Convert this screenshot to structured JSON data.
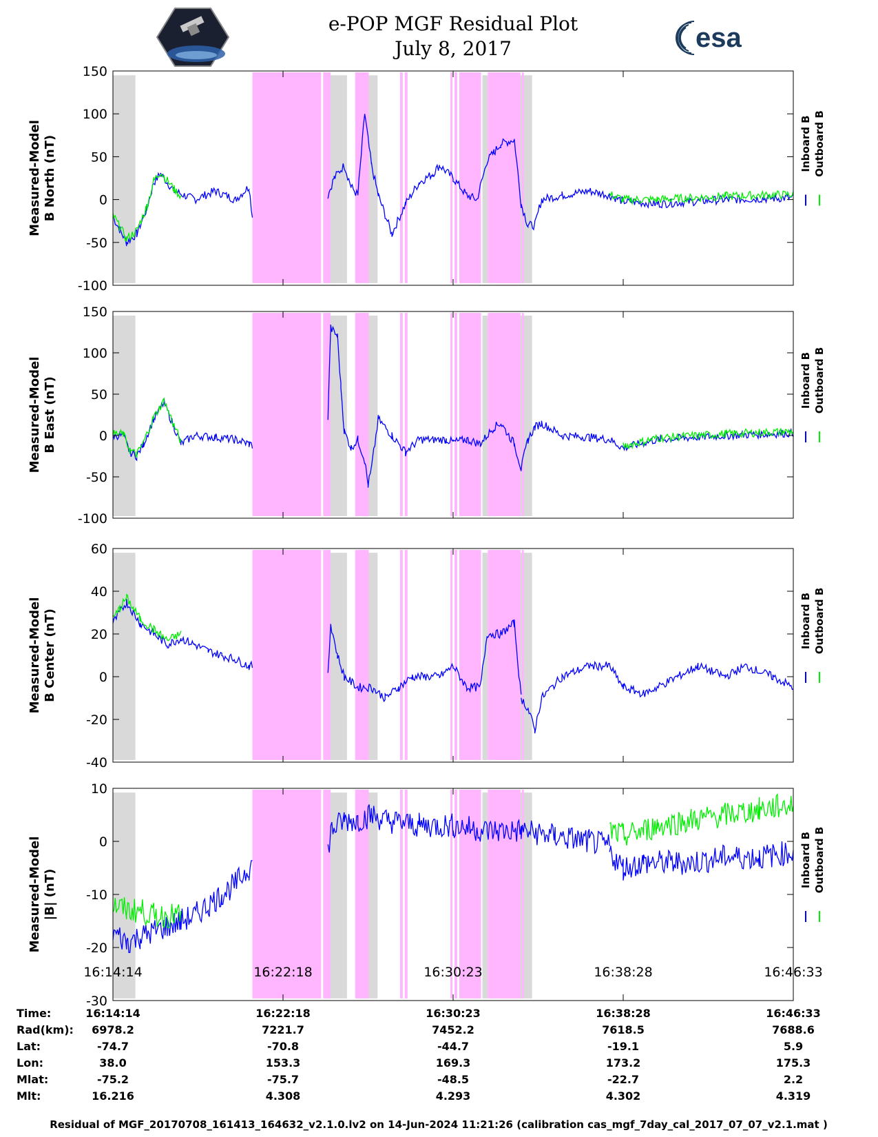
{
  "title_line1": "e-POP MGF Residual Plot",
  "title_line2": "July 8, 2017",
  "logos": {
    "left": "cassiope-mission-logo",
    "right_text": "esa"
  },
  "colors": {
    "inboard": "#0000ff",
    "outboard": "#00ee00",
    "gap": "#d9d9d9",
    "pink": "#ffb6ff"
  },
  "legend": {
    "inboard": "Inboard B",
    "outboard": "Outboard B"
  },
  "x_tick_labels": [
    "16:14:14",
    "16:22:18",
    "16:30:23",
    "16:38:28",
    "16:46:33"
  ],
  "info_table": {
    "rows": [
      {
        "label": "Time:",
        "values": [
          "16:14:14",
          "16:22:18",
          "16:30:23",
          "16:38:28",
          "16:46:33"
        ]
      },
      {
        "label": "Rad(km):",
        "values": [
          "6978.2",
          "7221.7",
          "7452.2",
          "7618.5",
          "7688.6"
        ]
      },
      {
        "label": "Lat:",
        "values": [
          "-74.7",
          "-70.8",
          "-44.7",
          "-19.1",
          "5.9"
        ]
      },
      {
        "label": "Lon:",
        "values": [
          "38.0",
          "153.3",
          "169.3",
          "173.2",
          "175.3"
        ]
      },
      {
        "label": "Mlat:",
        "values": [
          "-75.2",
          "-75.7",
          "-48.5",
          "-22.7",
          "2.2"
        ]
      },
      {
        "label": "Mlt:",
        "values": [
          "16.216",
          "4.308",
          "4.293",
          "4.302",
          "4.319"
        ]
      }
    ]
  },
  "footer": "Residual of MGF_20170708_161413_164632_v2.1.0.lv2 on 14-Jun-2024 11:21:26 (calibration cas_mgf_7day_cal_2017_07_07_v2.1.mat )",
  "chart_data": [
    {
      "type": "line",
      "ylabel_line1": "Measured-Model",
      "ylabel_line2": "B North (nT)",
      "ylim": [
        -100,
        150
      ],
      "yticks": [
        -100,
        -50,
        0,
        50,
        100,
        150
      ],
      "x_range": [
        0,
        1
      ],
      "gray_bands": [
        [
          0.0,
          0.033
        ],
        [
          0.318,
          0.344
        ],
        [
          0.373,
          0.389
        ],
        [
          0.543,
          0.551
        ],
        [
          0.566,
          0.616
        ]
      ],
      "pink_bands": [
        [
          0.205,
          0.306
        ],
        [
          0.309,
          0.32
        ],
        [
          0.356,
          0.376
        ],
        [
          0.422,
          0.426
        ],
        [
          0.429,
          0.433
        ],
        [
          0.496,
          0.499
        ],
        [
          0.502,
          0.506
        ],
        [
          0.509,
          0.541
        ],
        [
          0.551,
          0.599
        ],
        [
          0.601,
          0.604
        ]
      ],
      "series": [
        {
          "name": "Inboard B",
          "x": [
            0.0,
            0.01,
            0.02,
            0.035,
            0.05,
            0.06,
            0.07,
            0.09,
            0.12,
            0.15,
            0.18,
            0.2,
            0.205
          ],
          "values": [
            -20,
            -35,
            -50,
            -40,
            -10,
            20,
            30,
            10,
            0,
            10,
            0,
            15,
            -20
          ]
        },
        {
          "name": "Inboard B",
          "x": [
            0.316,
            0.325,
            0.34,
            0.35,
            0.36,
            0.37,
            0.38,
            0.39,
            0.41,
            0.43,
            0.45,
            0.47,
            0.48,
            0.5,
            0.52,
            0.535,
            0.55,
            0.56,
            0.57,
            0.59,
            0.6
          ],
          "values": [
            5,
            25,
            40,
            15,
            5,
            100,
            40,
            5,
            -40,
            -5,
            20,
            30,
            40,
            25,
            5,
            0,
            45,
            55,
            65,
            70,
            -5
          ]
        },
        {
          "name": "Inboard B",
          "x": [
            0.6,
            0.61,
            0.62,
            0.63,
            0.66,
            0.7,
            0.73,
            0.75,
            0.8,
            0.9,
            1.0
          ],
          "values": [
            -5,
            -30,
            -30,
            0,
            5,
            10,
            5,
            -2,
            -5,
            0,
            2
          ]
        },
        {
          "name": "Outboard B",
          "x": [
            0.0,
            0.01,
            0.02,
            0.035,
            0.05,
            0.06,
            0.07,
            0.09,
            0.1
          ],
          "values": [
            -18,
            -32,
            -46,
            -36,
            -8,
            22,
            32,
            12,
            4
          ]
        },
        {
          "name": "Outboard B",
          "x": [
            0.73,
            0.75,
            0.8,
            0.9,
            1.0
          ],
          "values": [
            6,
            0,
            0,
            4,
            6
          ]
        }
      ]
    },
    {
      "type": "line",
      "ylabel_line1": "Measured-Model",
      "ylabel_line2": "B East (nT)",
      "ylim": [
        -100,
        150
      ],
      "yticks": [
        -100,
        -50,
        0,
        50,
        100,
        150
      ],
      "x_range": [
        0,
        1
      ],
      "gray_bands": [
        [
          0.0,
          0.033
        ],
        [
          0.318,
          0.344
        ],
        [
          0.373,
          0.389
        ],
        [
          0.543,
          0.551
        ],
        [
          0.566,
          0.616
        ]
      ],
      "pink_bands": [
        [
          0.205,
          0.306
        ],
        [
          0.309,
          0.32
        ],
        [
          0.356,
          0.376
        ],
        [
          0.422,
          0.426
        ],
        [
          0.429,
          0.433
        ],
        [
          0.496,
          0.499
        ],
        [
          0.502,
          0.506
        ],
        [
          0.509,
          0.541
        ],
        [
          0.551,
          0.599
        ],
        [
          0.601,
          0.604
        ]
      ],
      "series": [
        {
          "name": "Inboard B",
          "x": [
            0.0,
            0.015,
            0.025,
            0.035,
            0.045,
            0.06,
            0.075,
            0.09,
            0.1,
            0.12,
            0.15,
            0.18,
            0.2,
            0.205
          ],
          "values": [
            0,
            0,
            -20,
            -25,
            -10,
            20,
            40,
            10,
            -10,
            0,
            -2,
            -5,
            -10,
            -12
          ]
        },
        {
          "name": "Inboard B",
          "x": [
            0.316,
            0.32,
            0.33,
            0.335,
            0.34,
            0.35,
            0.36,
            0.37,
            0.375,
            0.38,
            0.39,
            0.41,
            0.43,
            0.45,
            0.47,
            0.49,
            0.5,
            0.52,
            0.54,
            0.56,
            0.57,
            0.59,
            0.6
          ],
          "values": [
            20,
            130,
            120,
            60,
            5,
            -15,
            -5,
            -30,
            -60,
            -40,
            20,
            0,
            -20,
            -5,
            -5,
            -5,
            -8,
            -5,
            -10,
            10,
            15,
            -10,
            -40
          ]
        },
        {
          "name": "Inboard B",
          "x": [
            0.6,
            0.61,
            0.62,
            0.63,
            0.66,
            0.7,
            0.73,
            0.75,
            0.8,
            0.9,
            1.0
          ],
          "values": [
            -40,
            -5,
            10,
            15,
            0,
            -2,
            -5,
            -15,
            -5,
            0,
            3
          ]
        },
        {
          "name": "Outboard B",
          "x": [
            0.0,
            0.015,
            0.025,
            0.035,
            0.045,
            0.06,
            0.075,
            0.09,
            0.1
          ],
          "values": [
            2,
            2,
            -18,
            -23,
            -8,
            22,
            42,
            12,
            -8
          ]
        },
        {
          "name": "Outboard B",
          "x": [
            0.75,
            0.8,
            0.9,
            1.0
          ],
          "values": [
            -13,
            -3,
            2,
            5
          ]
        }
      ]
    },
    {
      "type": "line",
      "ylabel_line1": "Measured-Model",
      "ylabel_line2": "B Center (nT)",
      "ylim": [
        -40,
        60
      ],
      "yticks": [
        -40,
        -20,
        0,
        20,
        40,
        60
      ],
      "x_range": [
        0,
        1
      ],
      "gray_bands": [
        [
          0.0,
          0.033
        ],
        [
          0.318,
          0.344
        ],
        [
          0.373,
          0.389
        ],
        [
          0.543,
          0.551
        ],
        [
          0.566,
          0.616
        ]
      ],
      "pink_bands": [
        [
          0.205,
          0.306
        ],
        [
          0.309,
          0.32
        ],
        [
          0.356,
          0.376
        ],
        [
          0.422,
          0.426
        ],
        [
          0.429,
          0.433
        ],
        [
          0.496,
          0.499
        ],
        [
          0.502,
          0.506
        ],
        [
          0.509,
          0.541
        ],
        [
          0.551,
          0.599
        ],
        [
          0.601,
          0.604
        ]
      ],
      "series": [
        {
          "name": "Inboard B",
          "x": [
            0.0,
            0.01,
            0.02,
            0.03,
            0.04,
            0.06,
            0.08,
            0.1,
            0.12,
            0.14,
            0.16,
            0.18,
            0.2,
            0.205
          ],
          "values": [
            25,
            30,
            35,
            30,
            25,
            20,
            15,
            18,
            15,
            12,
            10,
            8,
            5,
            5
          ]
        },
        {
          "name": "Inboard B",
          "x": [
            0.316,
            0.32,
            0.33,
            0.34,
            0.36,
            0.38,
            0.4,
            0.42,
            0.44,
            0.46,
            0.48,
            0.5,
            0.52,
            0.54,
            0.55,
            0.57,
            0.59,
            0.6
          ],
          "values": [
            0,
            25,
            10,
            0,
            -5,
            -5,
            -10,
            -5,
            0,
            0,
            0,
            5,
            -5,
            -5,
            20,
            20,
            25,
            -10
          ]
        },
        {
          "name": "Inboard B",
          "x": [
            0.6,
            0.61,
            0.62,
            0.63,
            0.66,
            0.7,
            0.73,
            0.75,
            0.78,
            0.8,
            0.83,
            0.86,
            0.9,
            0.93,
            0.97,
            1.0
          ],
          "values": [
            -10,
            -15,
            -25,
            -10,
            0,
            5,
            5,
            -5,
            -8,
            -5,
            0,
            5,
            0,
            5,
            0,
            -5
          ]
        },
        {
          "name": "Outboard B",
          "x": [
            0.0,
            0.01,
            0.02,
            0.03,
            0.04,
            0.06,
            0.08,
            0.1
          ],
          "values": [
            27,
            32,
            37,
            32,
            27,
            22,
            17,
            20
          ]
        }
      ]
    },
    {
      "type": "line",
      "ylabel_line1": "Measured-Model",
      "ylabel_line2": "|B| (nT)",
      "ylim": [
        -30,
        10
      ],
      "yticks": [
        -30,
        -20,
        -10,
        0,
        10
      ],
      "x_range": [
        0,
        1
      ],
      "gray_bands": [
        [
          0.0,
          0.033
        ],
        [
          0.318,
          0.344
        ],
        [
          0.373,
          0.389
        ],
        [
          0.543,
          0.551
        ],
        [
          0.566,
          0.616
        ]
      ],
      "pink_bands": [
        [
          0.205,
          0.306
        ],
        [
          0.309,
          0.32
        ],
        [
          0.356,
          0.376
        ],
        [
          0.422,
          0.426
        ],
        [
          0.429,
          0.433
        ],
        [
          0.496,
          0.499
        ],
        [
          0.502,
          0.506
        ],
        [
          0.509,
          0.541
        ],
        [
          0.551,
          0.599
        ],
        [
          0.601,
          0.604
        ]
      ],
      "series": [
        {
          "name": "Inboard B",
          "x": [
            0.0,
            0.02,
            0.04,
            0.06,
            0.08,
            0.1,
            0.12,
            0.14,
            0.16,
            0.18,
            0.2,
            0.205
          ],
          "values": [
            -17,
            -19,
            -18,
            -17,
            -16,
            -15,
            -14,
            -12,
            -10,
            -8,
            -5,
            -4
          ]
        },
        {
          "name": "Inboard B",
          "x": [
            0.316,
            0.32,
            0.34,
            0.36,
            0.38,
            0.4,
            0.45,
            0.5,
            0.55,
            0.6,
            0.65,
            0.7,
            0.73
          ],
          "values": [
            -2,
            2,
            4,
            4,
            5,
            4,
            3,
            3,
            2,
            2,
            1,
            0,
            -1
          ]
        },
        {
          "name": "Inboard B",
          "x": [
            0.73,
            0.75,
            0.78,
            0.8,
            0.85,
            0.9,
            0.95,
            1.0
          ],
          "values": [
            -2,
            -5,
            -4,
            -4,
            -4,
            -3,
            -3,
            -2
          ]
        },
        {
          "name": "Outboard B",
          "x": [
            0.0,
            0.02,
            0.04,
            0.06,
            0.08,
            0.1
          ],
          "values": [
            -12,
            -13,
            -13,
            -14,
            -14,
            -14
          ]
        },
        {
          "name": "Outboard B",
          "x": [
            0.73,
            0.75,
            0.78,
            0.8,
            0.85,
            0.9,
            0.95,
            1.0
          ],
          "values": [
            2,
            1,
            2,
            3,
            4,
            5,
            6,
            7
          ]
        }
      ]
    }
  ]
}
